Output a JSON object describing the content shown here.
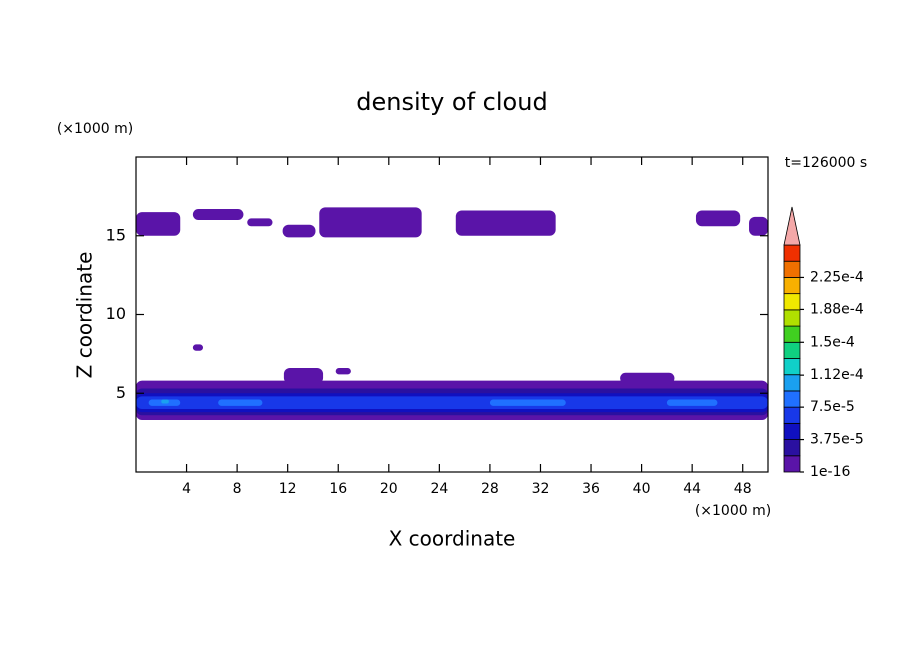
{
  "chart_data": {
    "type": "contour",
    "title": "density of cloud",
    "xlabel": "X coordinate",
    "ylabel": "Z coordinate",
    "x_unit": "(×1000 m)",
    "y_unit": "(×1000 m)",
    "time_label": "t=126000 s",
    "xlim": [
      0,
      50
    ],
    "xticks": [
      4,
      8,
      12,
      16,
      20,
      24,
      28,
      32,
      36,
      40,
      44,
      48
    ],
    "ylim": [
      0,
      20
    ],
    "yticks": [
      5,
      10,
      15
    ],
    "colorbar": {
      "levels": [
        1e-16,
        1.875e-05,
        3.75e-05,
        5.625e-05,
        7.5e-05,
        9.375e-05,
        0.0001125,
        0.00013125,
        0.00015,
        0.00016875,
        0.0001875,
        0.00020625,
        0.000225,
        0.00024375
      ],
      "colors": [
        "#5a14a8",
        "#2a10a0",
        "#1010c0",
        "#1838e8",
        "#2070ff",
        "#1aa0f0",
        "#10d0c8",
        "#10d080",
        "#40d020",
        "#b0e000",
        "#f0e800",
        "#f8b000",
        "#f07000",
        "#f03000"
      ],
      "over_color": "#f4a8a8",
      "ticks": [
        {
          "value": 1e-16,
          "label": "1e-16"
        },
        {
          "value": 3.75e-05,
          "label": "3.75e-5"
        },
        {
          "value": 7.5e-05,
          "label": "7.5e-5"
        },
        {
          "value": 0.000112,
          "label": "1.12e-4"
        },
        {
          "value": 0.00015,
          "label": "1.5e-4"
        },
        {
          "value": 0.000188,
          "label": "1.88e-4"
        },
        {
          "value": 0.000225,
          "label": "2.25e-4"
        }
      ]
    },
    "regions": [
      {
        "x": [
          0,
          3.5
        ],
        "z": [
          15,
          16.5
        ],
        "level": 1e-16
      },
      {
        "x": [
          4.5,
          8.5
        ],
        "z": [
          16,
          16.7
        ],
        "level": 1e-16
      },
      {
        "x": [
          8.8,
          10.8
        ],
        "z": [
          15.6,
          16.1
        ],
        "level": 1e-16
      },
      {
        "x": [
          11.6,
          14.2
        ],
        "z": [
          14.9,
          15.7
        ],
        "level": 1e-16
      },
      {
        "x": [
          14.5,
          22.6
        ],
        "z": [
          14.9,
          16.8
        ],
        "level": 1e-16
      },
      {
        "x": [
          25.3,
          33.2
        ],
        "z": [
          15,
          16.6
        ],
        "level": 1e-16
      },
      {
        "x": [
          44.3,
          47.8
        ],
        "z": [
          15.6,
          16.6
        ],
        "level": 1e-16
      },
      {
        "x": [
          48.5,
          50
        ],
        "z": [
          15,
          16.2
        ],
        "level": 1e-16
      },
      {
        "x": [
          4.5,
          5.3
        ],
        "z": [
          7.7,
          8.1
        ],
        "level": 1e-16
      },
      {
        "x": [
          11.7,
          14.8
        ],
        "z": [
          5.6,
          6.6
        ],
        "level": 1e-16
      },
      {
        "x": [
          15.8,
          17
        ],
        "z": [
          6.2,
          6.6
        ],
        "level": 1e-16
      },
      {
        "x": [
          38.3,
          42.6
        ],
        "z": [
          5.6,
          6.3
        ],
        "level": 1e-16
      },
      {
        "x": [
          0,
          50
        ],
        "z": [
          3.3,
          5.8
        ],
        "level": 1e-16
      },
      {
        "x": [
          0,
          50
        ],
        "z": [
          3.6,
          5.3
        ],
        "level": 1.875e-05
      },
      {
        "x": [
          0,
          50
        ],
        "z": [
          3.8,
          5.0
        ],
        "level": 3.75e-05
      },
      {
        "x": [
          0,
          50
        ],
        "z": [
          4.0,
          4.8
        ],
        "level": 5.625e-05
      },
      {
        "x": [
          1,
          3.5
        ],
        "z": [
          4.2,
          4.6
        ],
        "level": 7.5e-05
      },
      {
        "x": [
          6.5,
          10
        ],
        "z": [
          4.2,
          4.6
        ],
        "level": 7.5e-05
      },
      {
        "x": [
          28,
          34
        ],
        "z": [
          4.2,
          4.6
        ],
        "level": 7.5e-05
      },
      {
        "x": [
          42,
          46
        ],
        "z": [
          4.2,
          4.6
        ],
        "level": 7.5e-05
      },
      {
        "x": [
          2,
          2.6
        ],
        "z": [
          4.35,
          4.6
        ],
        "level": 9.375e-05
      }
    ]
  }
}
